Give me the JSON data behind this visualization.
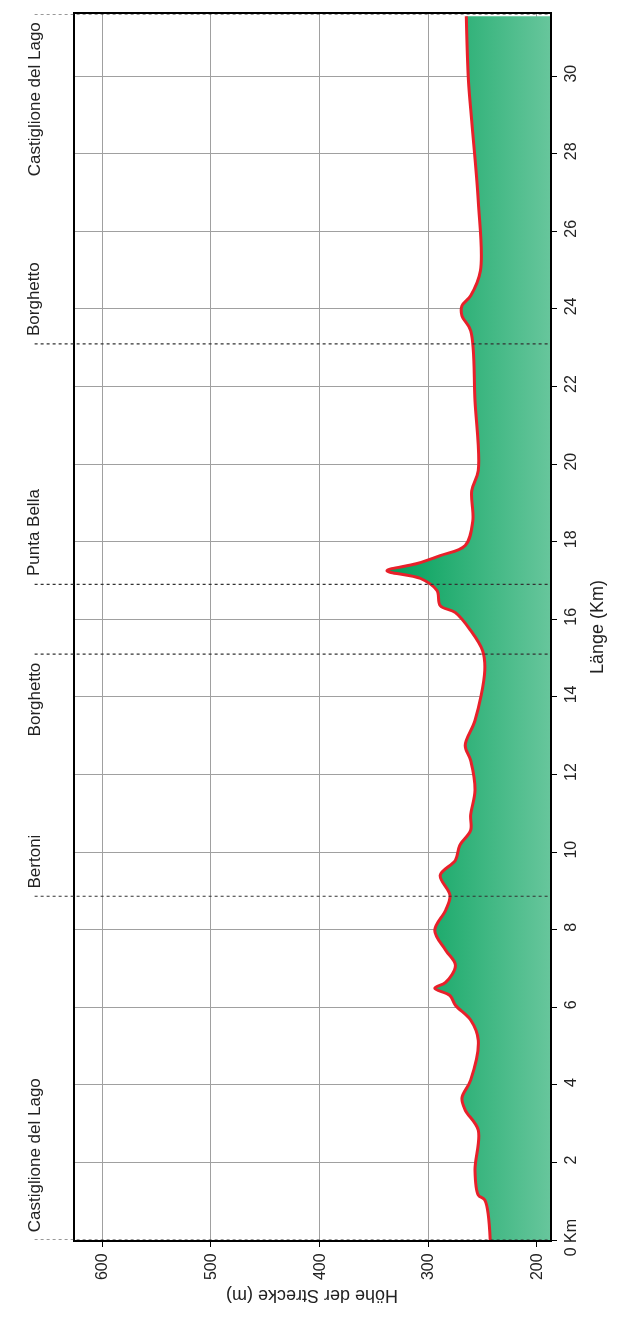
{
  "chart_data": {
    "type": "area",
    "orientation": "horizontal",
    "xlabel": "Höhe der Strecke (m)",
    "ylabel": "Länge (Km)",
    "x": [
      0,
      1.03,
      1.16,
      1.8,
      2.83,
      3.35,
      3.66,
      4.12,
      5.15,
      5.67,
      6.05,
      6.3,
      6.49,
      6.64,
      7.08,
      7.47,
      7.98,
      8.5,
      8.88,
      9.4,
      9.79,
      10.17,
      10.56,
      10.95,
      11.59,
      12.36,
      12.75,
      13.39,
      14.68,
      15.19,
      15.71,
      16.17,
      16.35,
      16.74,
      17.05,
      17.25,
      17.43,
      17.64,
      17.9,
      18.54,
      19.31,
      19.83,
      21.63,
      23.44,
      23.82,
      24.08,
      24.34,
      24.98,
      26.78,
      28.84,
      29.87,
      31.54
    ],
    "series": [
      {
        "color": "#e8202a",
        "values": [
          243,
          248,
          254,
          257,
          254,
          266,
          269,
          261,
          254,
          261,
          275,
          280,
          294,
          284,
          275,
          284,
          294,
          284,
          280,
          289,
          275,
          271,
          261,
          261,
          257,
          261,
          266,
          257,
          248,
          250,
          261,
          275,
          289,
          292,
          307,
          338,
          311,
          289,
          266,
          259,
          260,
          254,
          257,
          261,
          269,
          269,
          261,
          252,
          254,
          260,
          263,
          265
        ]
      }
    ],
    "xlim": [
      625,
      188
    ],
    "xticks": [
      200,
      300,
      400,
      500,
      600
    ],
    "ylim": [
      0,
      31.6
    ],
    "yticks": [
      {
        "value": 0,
        "label": "0 Km"
      },
      2,
      4,
      6,
      8,
      10,
      12,
      14,
      16,
      18,
      20,
      22,
      24,
      26,
      28,
      30
    ],
    "grid": true,
    "ref_lines": [
      {
        "axis": "y",
        "value": 0,
        "label": "Castiglione del Lago",
        "line_style": "dotted"
      },
      {
        "axis": "y",
        "value": 8.86,
        "label": "Bertoni",
        "line_style": "dotted"
      },
      {
        "axis": "y",
        "value": 15.1,
        "label": "Borghetto",
        "line_style": "dotted"
      },
      {
        "axis": "y",
        "value": 16.9,
        "label": "Punta Bella",
        "line_style": "dotted"
      },
      {
        "axis": "y",
        "value": 23.1,
        "label": "Borghetto",
        "line_style": "dotted"
      },
      {
        "axis": "y",
        "value": 31.6,
        "label": "Castiglione del Lago",
        "line_style": "dotted"
      }
    ]
  }
}
